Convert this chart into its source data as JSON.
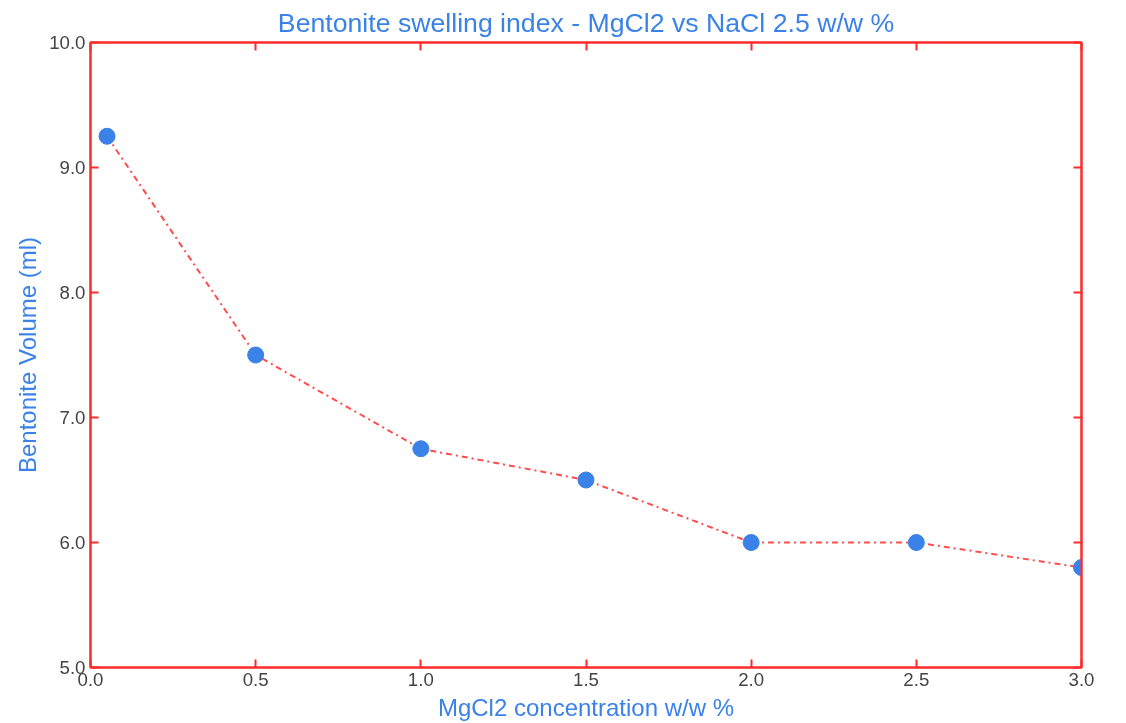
{
  "chart_data": {
    "type": "scatter",
    "title": "Bentonite swelling index - MgCl2 vs NaCl 2.5 w/w %",
    "xlabel": "MgCl2 concentration w/w %",
    "ylabel": "Bentonite Volume (ml)",
    "x": [
      0.05,
      0.5,
      1.0,
      1.5,
      2.0,
      2.5,
      3.0
    ],
    "series": [
      {
        "type": "line",
        "color": "#ff4d4d",
        "line_style": "dashed",
        "marker": "none",
        "values": [
          9.25,
          7.5,
          6.75,
          6.5,
          6.0,
          6.0,
          5.8
        ]
      },
      {
        "color": "#3b82e8",
        "marker": "circle",
        "values": [
          9.25,
          7.5,
          6.75,
          6.5,
          6.0,
          6.0,
          5.8
        ]
      }
    ],
    "xlim": [
      0,
      3
    ],
    "ylim": [
      5,
      10
    ],
    "xticks": [
      {
        "value": 0,
        "label": "0.0"
      },
      0.5,
      {
        "value": 1,
        "label": "1.0"
      },
      1.5,
      {
        "value": 2,
        "label": "2.0"
      },
      2.5,
      {
        "value": 3,
        "label": "3.0"
      }
    ],
    "yticks": [
      {
        "value": 5,
        "label": "5.0"
      },
      {
        "value": 6,
        "label": "6.0"
      },
      {
        "value": 7,
        "label": "7.0"
      },
      {
        "value": 8,
        "label": "8.0"
      },
      {
        "value": 9,
        "label": "9.0"
      },
      {
        "value": 10,
        "label": "10.0"
      }
    ],
    "grid": false
  }
}
